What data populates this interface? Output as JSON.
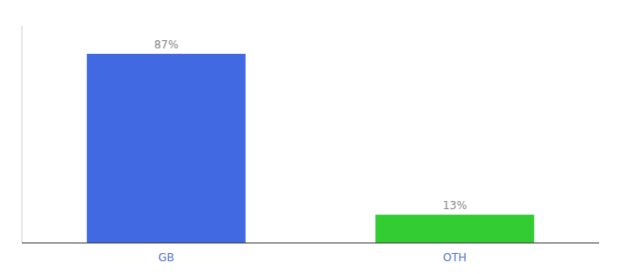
{
  "chart_data": {
    "type": "bar",
    "categories": [
      "GB",
      "OTH"
    ],
    "values": [
      87,
      13
    ],
    "value_labels": [
      "87%",
      "13%"
    ],
    "colors": [
      "#4169e1",
      "#33cc33"
    ],
    "ylim": [
      0,
      100
    ],
    "data_labels": true,
    "tick_labels": "x"
  }
}
